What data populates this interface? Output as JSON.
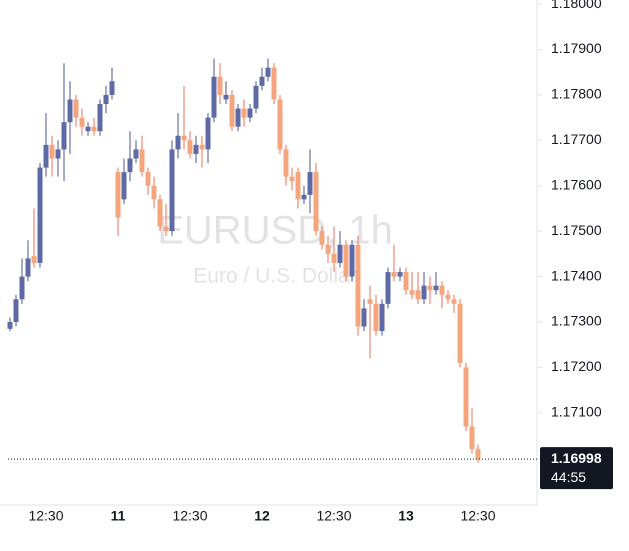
{
  "chart_data": {
    "type": "candlestick",
    "watermark_title": "EURUSD, 1h",
    "watermark_subtitle": "Euro / U.S. Dollar",
    "categories": [
      null,
      null,
      null,
      null,
      null,
      null,
      "12:30",
      null,
      null,
      null,
      null,
      null,
      null,
      null,
      null,
      null,
      null,
      null,
      "11",
      null,
      null,
      null,
      null,
      null,
      null,
      null,
      null,
      null,
      null,
      null,
      "12:30",
      null,
      null,
      null,
      null,
      null,
      null,
      null,
      null,
      null,
      null,
      null,
      "12",
      null,
      null,
      null,
      null,
      null,
      null,
      null,
      null,
      null,
      null,
      null,
      "12:30",
      null,
      null,
      null,
      null,
      null,
      null,
      null,
      null,
      null,
      null,
      null,
      "13",
      null,
      null,
      null,
      null,
      null,
      null,
      null,
      null,
      null,
      null,
      null,
      "12:30"
    ],
    "open": [
      1.17285,
      1.173,
      1.1735,
      1.174,
      1.17445,
      1.1743,
      1.1764,
      1.1769,
      1.1766,
      1.1768,
      1.1774,
      1.1779,
      1.1775,
      1.1772,
      1.1773,
      1.1772,
      1.1778,
      1.178,
      1.1763,
      1.1757,
      1.1763,
      1.1766,
      1.1768,
      1.1763,
      1.176,
      1.1757,
      1.1751,
      1.175,
      1.1768,
      1.1771,
      1.177,
      1.1767,
      1.1769,
      1.1768,
      1.1775,
      1.1784,
      1.1779,
      1.178,
      1.1773,
      1.1777,
      1.1775,
      1.1777,
      1.1782,
      1.1784,
      1.1786,
      1.1779,
      1.1768,
      1.1762,
      1.1763,
      1.1757,
      1.1758,
      1.1763,
      1.175,
      1.1747,
      1.1745,
      1.1743,
      1.1747,
      1.174,
      1.1747,
      1.1729,
      1.1735,
      1.1734,
      1.1728,
      1.1734,
      1.1741,
      1.174,
      1.1741,
      1.1737,
      1.1737,
      1.1735,
      1.1738,
      1.1737,
      1.1738,
      1.1736,
      1.1735,
      1.1734,
      1.172,
      1.1707,
      1.1702
    ],
    "high": [
      1.1731,
      1.1736,
      1.1744,
      1.1748,
      1.1755,
      1.1765,
      1.1776,
      1.1771,
      1.177,
      1.1787,
      1.1783,
      1.178,
      1.1777,
      1.1774,
      1.1775,
      1.1779,
      1.1782,
      1.1786,
      1.1764,
      1.1766,
      1.1772,
      1.177,
      1.1771,
      1.1764,
      1.1762,
      1.1758,
      1.1756,
      1.177,
      1.1776,
      1.1782,
      1.1772,
      1.1771,
      1.1771,
      1.1776,
      1.1788,
      1.1787,
      1.1783,
      1.1781,
      1.1778,
      1.1779,
      1.1778,
      1.1783,
      1.1786,
      1.1788,
      1.1787,
      1.178,
      1.1769,
      1.1764,
      1.1764,
      1.176,
      1.1768,
      1.1765,
      1.1751,
      1.1749,
      1.1751,
      1.175,
      1.1748,
      1.1748,
      1.1749,
      1.1735,
      1.1738,
      1.1736,
      1.1735,
      1.1742,
      1.1747,
      1.1742,
      1.1742,
      1.1741,
      1.1741,
      1.1741,
      1.174,
      1.1741,
      1.1739,
      1.1737,
      1.1736,
      1.1735,
      1.1721,
      1.1711,
      1.1703
    ],
    "low": [
      1.1728,
      1.1729,
      1.1734,
      1.1739,
      1.1742,
      1.1742,
      1.1762,
      1.1762,
      1.1762,
      1.1761,
      1.1767,
      1.1773,
      1.1771,
      1.1771,
      1.1771,
      1.1771,
      1.1776,
      1.1779,
      1.1749,
      1.1756,
      1.1761,
      1.1765,
      1.1762,
      1.1758,
      1.1755,
      1.175,
      1.1749,
      1.1749,
      1.1766,
      1.1768,
      1.1766,
      1.1765,
      1.1764,
      1.1765,
      1.1774,
      1.1778,
      1.1778,
      1.1772,
      1.1772,
      1.1773,
      1.1774,
      1.1776,
      1.1781,
      1.1783,
      1.1778,
      1.1767,
      1.176,
      1.1759,
      1.1755,
      1.1756,
      1.1754,
      1.1749,
      1.1746,
      1.1743,
      1.1741,
      1.1742,
      1.1739,
      1.1739,
      1.1727,
      1.1728,
      1.1722,
      1.1727,
      1.1727,
      1.1733,
      1.1739,
      1.1739,
      1.1736,
      1.1735,
      1.1734,
      1.1734,
      1.1734,
      1.1736,
      1.1733,
      1.1734,
      1.1732,
      1.172,
      1.1706,
      1.1701,
      1.1699
    ],
    "close": [
      1.173,
      1.1735,
      1.174,
      1.1744,
      1.1743,
      1.1764,
      1.1769,
      1.1766,
      1.1768,
      1.1774,
      1.1779,
      1.1775,
      1.1773,
      1.1773,
      1.1772,
      1.1778,
      1.178,
      1.1783,
      1.1753,
      1.1763,
      1.1766,
      1.1768,
      1.1763,
      1.176,
      1.1757,
      1.1751,
      1.175,
      1.1768,
      1.1771,
      1.177,
      1.1767,
      1.1769,
      1.1768,
      1.1775,
      1.1784,
      1.178,
      1.178,
      1.1773,
      1.1777,
      1.1775,
      1.1777,
      1.1782,
      1.1784,
      1.1786,
      1.1779,
      1.1768,
      1.1762,
      1.1761,
      1.1757,
      1.1758,
      1.1763,
      1.175,
      1.1747,
      1.1745,
      1.1743,
      1.1747,
      1.174,
      1.1747,
      1.1729,
      1.1733,
      1.1734,
      1.1728,
      1.1734,
      1.1741,
      1.174,
      1.1741,
      1.1737,
      1.1736,
      1.1735,
      1.1738,
      1.1737,
      1.1738,
      1.1736,
      1.1735,
      1.1734,
      1.1721,
      1.1707,
      1.1702,
      1.16998
    ],
    "up_color": "#5d6aa6",
    "down_color": "#f5a57c",
    "ylim": [
      1.16897,
      1.18009
    ],
    "yticks": [
      {
        "value": 1.18,
        "label": "1.18000"
      },
      {
        "value": 1.179,
        "label": "1.17900"
      },
      {
        "value": 1.178,
        "label": "1.17800"
      },
      {
        "value": 1.177,
        "label": "1.17700"
      },
      {
        "value": 1.176,
        "label": "1.17600"
      },
      {
        "value": 1.175,
        "label": "1.17500"
      },
      {
        "value": 1.174,
        "label": "1.17400"
      },
      {
        "value": 1.173,
        "label": "1.17300"
      },
      {
        "value": 1.172,
        "label": "1.17200"
      },
      {
        "value": 1.171,
        "label": "1.17100"
      }
    ],
    "last_price": 1.16998,
    "countdown": "44:55"
  }
}
